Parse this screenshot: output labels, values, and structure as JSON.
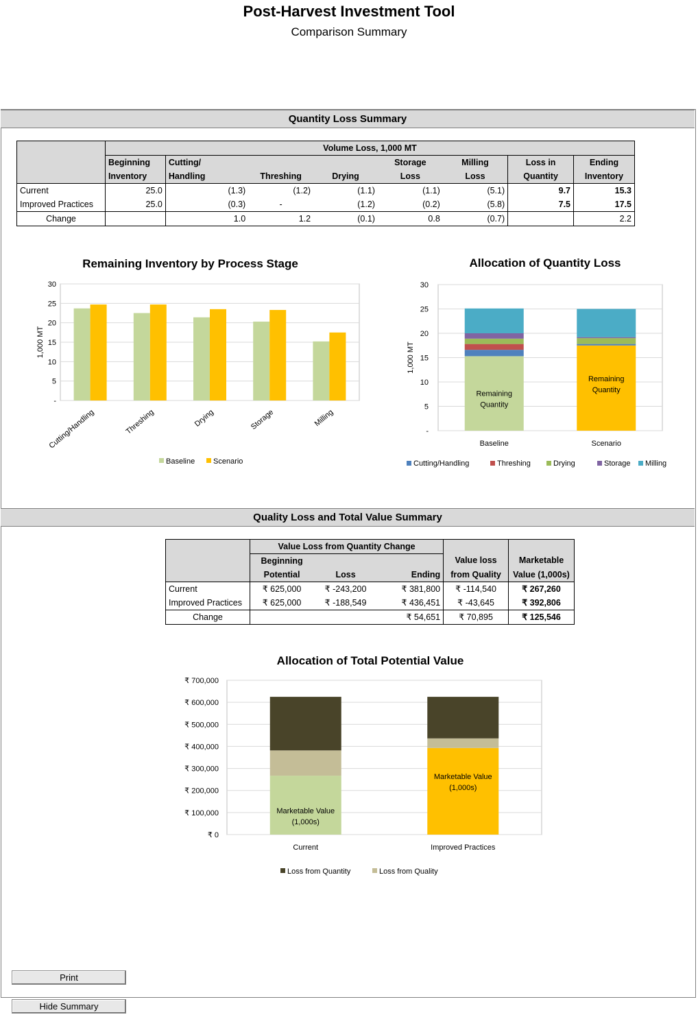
{
  "header": {
    "title": "Post-Harvest Investment Tool",
    "subtitle": "Comparison Summary"
  },
  "quantity_section": {
    "title": "Quantity Loss Summary",
    "table": {
      "group_header": "Volume Loss, 1,000 MT",
      "columns_line1": [
        "Beginning",
        "Cutting/",
        "",
        "",
        "Storage",
        "Milling",
        "Loss in",
        "Ending"
      ],
      "columns_line2": [
        "Inventory",
        "Handling",
        "Threshing",
        "Drying",
        "Loss",
        "Loss",
        "Quantity",
        "Inventory"
      ],
      "rows": [
        {
          "label": "Current",
          "values": [
            "25.0",
            "(1.3)",
            "(1.2)",
            "(1.1)",
            "(1.1)",
            "(5.1)",
            "9.7",
            "15.3"
          ]
        },
        {
          "label": "Improved Practices",
          "values": [
            "25.0",
            "(0.3)",
            "-",
            "(1.2)",
            "(0.2)",
            "(5.8)",
            "7.5",
            "17.5"
          ]
        },
        {
          "label": "Change",
          "values": [
            "",
            "1.0",
            "1.2",
            "(0.1)",
            "0.8",
            "(0.7)",
            "",
            "2.2"
          ]
        }
      ]
    }
  },
  "quality_section": {
    "title": "Quality Loss and Total Value Summary",
    "table": {
      "group_header": "Value Loss from Quantity Change",
      "columns_line1": [
        "Beginning",
        "",
        "",
        "Value loss",
        "Marketable"
      ],
      "columns_line2": [
        "Potential",
        "Loss",
        "Ending",
        "from Quality",
        "Value (1,000s)"
      ],
      "rows": [
        {
          "label": "Current",
          "values": [
            "₹ 625,000",
            "₹ -243,200",
            "₹ 381,800",
            "₹ -114,540",
            "₹ 267,260"
          ]
        },
        {
          "label": "Improved Practices",
          "values": [
            "₹ 625,000",
            "₹ -188,549",
            "₹ 436,451",
            "₹ -43,645",
            "₹ 392,806"
          ]
        },
        {
          "label": "Change",
          "values": [
            "",
            "",
            "₹ 54,651",
            "₹ 70,895",
            "₹ 125,546"
          ]
        }
      ]
    }
  },
  "chart_data": [
    {
      "type": "bar",
      "title": "Remaining Inventory by Process Stage",
      "ylabel": "1,000 MT",
      "ylim": [
        0,
        30
      ],
      "yticks": [
        "-",
        "5",
        "10",
        "15",
        "20",
        "25",
        "30"
      ],
      "categories": [
        "Cutting/Handling",
        "Threshing",
        "Drying",
        "Storage",
        "Milling"
      ],
      "series": [
        {
          "name": "Baseline",
          "color": "#c4d79b",
          "values": [
            23.7,
            22.5,
            21.4,
            20.3,
            15.2
          ]
        },
        {
          "name": "Scenario",
          "color": "#ffc000",
          "values": [
            24.7,
            24.7,
            23.5,
            23.3,
            17.5
          ]
        }
      ],
      "grid": true,
      "legend": "bottom"
    },
    {
      "type": "bar",
      "stacked": true,
      "title": "Allocation of Quantity Loss",
      "ylabel": "1,000 MT",
      "ylim": [
        0,
        30
      ],
      "yticks": [
        "-",
        "5",
        "10",
        "15",
        "20",
        "25",
        "30"
      ],
      "categories": [
        "Baseline",
        "Scenario"
      ],
      "inner_labels": [
        "Remaining Quantity",
        "Remaining Quantity"
      ],
      "remaining": {
        "colors": [
          "#c4d79b",
          "#ffc000"
        ],
        "values": [
          15.3,
          17.5
        ]
      },
      "series": [
        {
          "name": "Cutting/Handling",
          "color": "#4f81bd",
          "values": [
            1.3,
            0.3
          ]
        },
        {
          "name": "Threshing",
          "color": "#c0504d",
          "values": [
            1.2,
            0.0
          ]
        },
        {
          "name": "Drying",
          "color": "#9bbb59",
          "values": [
            1.1,
            1.2
          ]
        },
        {
          "name": "Storage",
          "color": "#8064a2",
          "values": [
            1.1,
            0.2
          ]
        },
        {
          "name": "Milling",
          "color": "#4bacc6",
          "values": [
            5.1,
            5.8
          ]
        }
      ],
      "grid": true,
      "legend": "bottom"
    },
    {
      "type": "bar",
      "stacked": true,
      "title": "Allocation of Total Potential Value",
      "ylim": [
        0,
        700000
      ],
      "yticks": [
        "₹ 0",
        "₹ 100,000",
        "₹ 200,000",
        "₹ 300,000",
        "₹ 400,000",
        "₹ 500,000",
        "₹ 600,000",
        "₹ 700,000"
      ],
      "categories": [
        "Current",
        "Improved Practices"
      ],
      "inner_labels": [
        "Marketable Value (1,000s)",
        "Marketable Value (1,000s)"
      ],
      "marketable": {
        "colors": [
          "#c4d79b",
          "#ffc000"
        ],
        "values": [
          267260,
          392806
        ]
      },
      "series": [
        {
          "name": "Loss from Quantity",
          "color": "#494429",
          "values": [
            243200,
            188549
          ]
        },
        {
          "name": "Loss from Quality",
          "color": "#c4bd97",
          "values": [
            114540,
            43645
          ]
        }
      ],
      "grid": true,
      "legend": "bottom"
    }
  ],
  "buttons": {
    "print": "Print",
    "hide": "Hide Summary"
  }
}
